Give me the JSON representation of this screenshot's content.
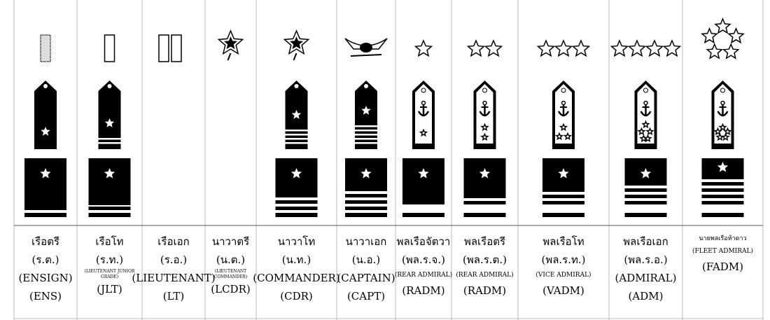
{
  "columns": [
    {
      "lines": [
        "เรือตรี",
        "(ร.ต.)",
        "(ENSIGN)",
        "(ENS)"
      ]
    },
    {
      "lines": [
        "เรือโท",
        "(ร.ท.)",
        "(LIEUTENANT JUNIOR GRADE)",
        "(JLT)"
      ]
    },
    {
      "lines": [
        "เรือเอก",
        "(ร.อ.)",
        "(LIEUTENANT)",
        "(LT)"
      ]
    },
    {
      "lines": [
        "นาวาตรี",
        "(น.ต.)",
        "(LIEUTENANT COMMANDER)",
        "(LCDR)"
      ]
    },
    {
      "lines": [
        "นาวาโท",
        "(น.ท.)",
        "(COMMANDER)",
        "(CDR)"
      ]
    },
    {
      "lines": [
        "นาวาเอก",
        "(น.อ.)",
        "(CAPTAIN)",
        "(CAPT)"
      ]
    },
    {
      "lines": [
        "พลเรือจัตวา",
        "(พล.ร.จ.)",
        "(REAR ADMIRAL)",
        "(RADM)"
      ]
    },
    {
      "lines": [
        "พลเรือตรี",
        "(พล.ร.ต.)",
        "(REAR ADMIRAL)",
        "(RADM)"
      ]
    },
    {
      "lines": [
        "พลเรือโท",
        "(พล.ร.ท.)",
        "(VICE ADMIRAL)",
        "(VADM)"
      ]
    },
    {
      "lines": [
        "พลเรือเอก",
        "(พล.ร.อ.)",
        "(ADMIRAL)",
        "(ADM)"
      ]
    },
    {
      "lines": [
        "นายพลเรือห้าดาว",
        "(FLEET ADMIRAL)",
        "(FADM)"
      ]
    }
  ]
}
